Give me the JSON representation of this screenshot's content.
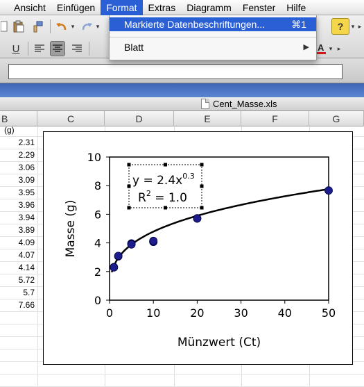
{
  "menubar": {
    "items": [
      "Ansicht",
      "Einfügen",
      "Format",
      "Extras",
      "Diagramm",
      "Fenster",
      "Hilfe"
    ],
    "active_index": 2
  },
  "dropdown": {
    "item1_label": "Markierte Datenbeschriftungen...",
    "item1_shortcut": "⌘1",
    "item2_label": "Blatt"
  },
  "toolbar": {
    "underline_label": "U"
  },
  "formula_bar": {
    "value": ""
  },
  "document": {
    "title": "Cent_Masse.xls"
  },
  "columns": [
    "B",
    "C",
    "D",
    "E",
    "F",
    "G"
  ],
  "column_b_values": [
    "(g)",
    "2.31",
    "2.29",
    "3.06",
    "3.09",
    "3.95",
    "3.96",
    "3.94",
    "3.89",
    "4.09",
    "4.07",
    "4.14",
    "5.72",
    "5.7",
    "7.66"
  ],
  "chart_data": {
    "type": "scatter",
    "title": "",
    "xlabel": "Münzwert (Ct)",
    "ylabel": "Masse (g)",
    "xlim": [
      0,
      50
    ],
    "ylim": [
      0,
      10
    ],
    "x_ticks": [
      "0",
      "10",
      "20",
      "30",
      "40",
      "50"
    ],
    "y_ticks": [
      "0",
      "2",
      "4",
      "6",
      "8",
      "10"
    ],
    "grid": false,
    "legend": "none",
    "series": [
      {
        "x": [
          1,
          1,
          2,
          2,
          5,
          5,
          5,
          5,
          10,
          10,
          10,
          20,
          20,
          50
        ],
        "y": [
          2.31,
          2.29,
          3.06,
          3.09,
          3.95,
          3.96,
          3.94,
          3.89,
          4.09,
          4.07,
          4.14,
          5.72,
          5.7,
          7.66
        ],
        "color": "#1c1c8c"
      }
    ],
    "trendline": {
      "type": "power",
      "a": 2.4,
      "b": 0.3,
      "color": "#000000"
    },
    "annotation": {
      "equation_prefix": "y = 2.4x",
      "equation_exponent": "0.3",
      "r2_prefix": "R",
      "r2_exponent": "2",
      "r2_suffix": " = 1.0"
    }
  }
}
